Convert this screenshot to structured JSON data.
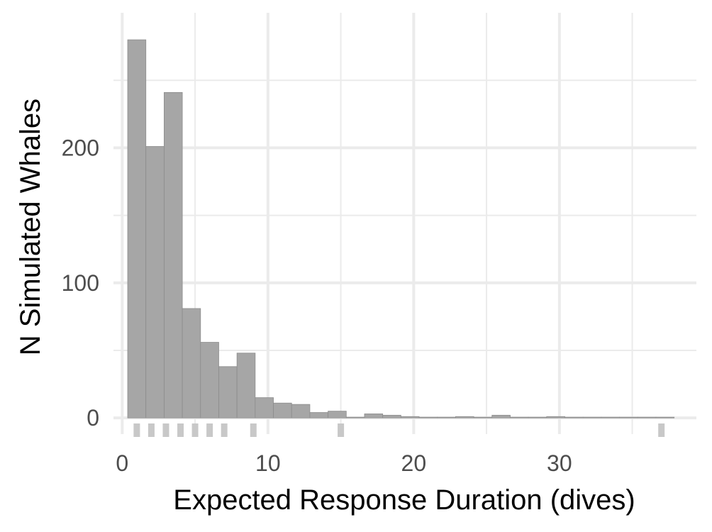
{
  "chart_data": {
    "type": "bar",
    "title": "",
    "xlabel": "Expected Response Duration (dives)",
    "ylabel": "N Simulated Whales",
    "xlim": [
      -0.6,
      39.4
    ],
    "ylim": [
      -12,
      300
    ],
    "xticks": [
      0,
      10,
      20,
      30
    ],
    "xtick_labels": [
      "0",
      "10",
      "20",
      "30"
    ],
    "yticks": [
      0,
      100,
      200
    ],
    "ytick_labels": [
      "0",
      "100",
      "200"
    ],
    "grid": true,
    "bin_width": 1.25,
    "bins": [
      {
        "x0": 0.375,
        "x1": 1.625,
        "count": 280
      },
      {
        "x0": 1.625,
        "x1": 2.875,
        "count": 201
      },
      {
        "x0": 2.875,
        "x1": 4.125,
        "count": 241
      },
      {
        "x0": 4.125,
        "x1": 5.375,
        "count": 81
      },
      {
        "x0": 5.375,
        "x1": 6.625,
        "count": 56
      },
      {
        "x0": 6.625,
        "x1": 7.875,
        "count": 38
      },
      {
        "x0": 7.875,
        "x1": 9.125,
        "count": 48
      },
      {
        "x0": 9.125,
        "x1": 10.375,
        "count": 15
      },
      {
        "x0": 10.375,
        "x1": 11.625,
        "count": 11
      },
      {
        "x0": 11.625,
        "x1": 12.875,
        "count": 10
      },
      {
        "x0": 12.875,
        "x1": 14.125,
        "count": 4
      },
      {
        "x0": 14.125,
        "x1": 15.375,
        "count": 5
      },
      {
        "x0": 15.375,
        "x1": 16.625,
        "count": 0
      },
      {
        "x0": 16.625,
        "x1": 17.875,
        "count": 3
      },
      {
        "x0": 17.875,
        "x1": 19.125,
        "count": 2
      },
      {
        "x0": 19.125,
        "x1": 20.375,
        "count": 1
      },
      {
        "x0": 20.375,
        "x1": 21.625,
        "count": 0
      },
      {
        "x0": 21.625,
        "x1": 22.875,
        "count": 0
      },
      {
        "x0": 22.875,
        "x1": 24.125,
        "count": 1
      },
      {
        "x0": 24.125,
        "x1": 25.375,
        "count": 0
      },
      {
        "x0": 25.375,
        "x1": 26.625,
        "count": 2
      },
      {
        "x0": 26.625,
        "x1": 27.875,
        "count": 0
      },
      {
        "x0": 27.875,
        "x1": 29.125,
        "count": 0
      },
      {
        "x0": 29.125,
        "x1": 30.375,
        "count": 1
      },
      {
        "x0": 30.375,
        "x1": 31.625,
        "count": 0
      },
      {
        "x0": 31.625,
        "x1": 32.875,
        "count": 0
      },
      {
        "x0": 32.875,
        "x1": 34.125,
        "count": 0
      },
      {
        "x0": 34.125,
        "x1": 35.375,
        "count": 0
      },
      {
        "x0": 35.375,
        "x1": 36.625,
        "count": 0
      },
      {
        "x0": 36.625,
        "x1": 37.875,
        "count": 0
      }
    ],
    "rug_x": [
      1,
      2,
      3,
      4,
      5,
      6,
      7,
      9,
      15,
      37
    ],
    "colors": {
      "bar_fill": "#a6a6a6",
      "bar_stroke": "#8c8c8c",
      "rug": "#c8c8c8",
      "grid_major": "#ebebeb",
      "grid_minor": "#ebebeb"
    }
  }
}
